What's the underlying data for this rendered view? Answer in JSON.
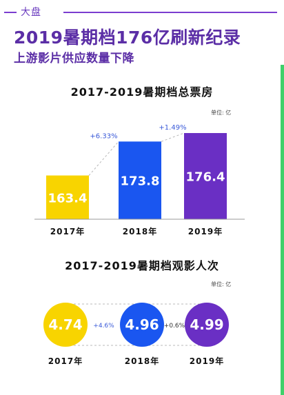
{
  "header": {
    "tag": "大盘",
    "title": "2019暑期档176亿刷新纪录",
    "subtitle": "上游影片供应数量下降"
  },
  "colors": {
    "accent": "#5b2ea6",
    "yellow": "#f8d400",
    "blue": "#1a56f0",
    "purple": "#6a2fc4",
    "growth_text": "#3a5ad8",
    "strip": "#3fd06a"
  },
  "chart_data": [
    {
      "type": "bar",
      "title": "2017-2019暑期档总票房",
      "unit": "单位: 亿",
      "categories": [
        "2017年",
        "2018年",
        "2019年"
      ],
      "values": [
        163.4,
        173.8,
        176.4
      ],
      "value_labels": [
        "163.4",
        "173.8",
        "176.4"
      ],
      "growth_labels": [
        "+6.33%",
        "+1.49%"
      ],
      "bar_colors": [
        "#f8d400",
        "#1a56f0",
        "#6a2fc4"
      ]
    },
    {
      "type": "bubble",
      "title": "2017-2019暑期档观影人次",
      "unit": "单位: 亿",
      "categories": [
        "2017年",
        "2018年",
        "2019年"
      ],
      "values": [
        4.74,
        4.96,
        4.99
      ],
      "value_labels": [
        "4.74",
        "4.96",
        "4.99"
      ],
      "growth_labels": [
        "+4.6%",
        "+0.6%"
      ],
      "circle_colors": [
        "#f8d400",
        "#1a56f0",
        "#6a2fc4"
      ]
    }
  ]
}
